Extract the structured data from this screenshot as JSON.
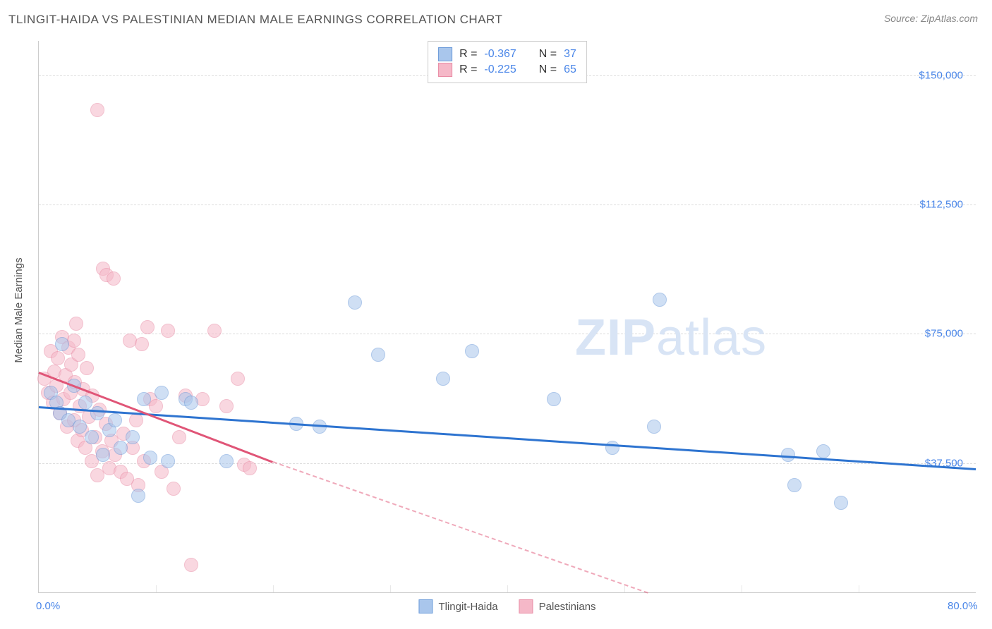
{
  "title": "TLINGIT-HAIDA VS PALESTINIAN MEDIAN MALE EARNINGS CORRELATION CHART",
  "source": "Source: ZipAtlas.com",
  "watermark_bold": "ZIP",
  "watermark_light": "atlas",
  "y_axis_label": "Median Male Earnings",
  "chart": {
    "type": "scatter",
    "background_color": "#ffffff",
    "grid_color": "#dddddd",
    "xlim": [
      0,
      80
    ],
    "ylim": [
      0,
      160000
    ],
    "x_ticks": [
      0,
      80
    ],
    "x_tick_labels": [
      "0.0%",
      "80.0%"
    ],
    "x_minor_ticks": [
      10,
      20,
      30,
      40,
      50,
      60,
      70
    ],
    "y_ticks": [
      37500,
      75000,
      112500,
      150000
    ],
    "y_tick_labels": [
      "$37,500",
      "$75,000",
      "$112,500",
      "$150,000"
    ],
    "point_radius": 9,
    "point_opacity": 0.55,
    "series": [
      {
        "name": "Tlingit-Haida",
        "fill_color": "#a9c6ec",
        "stroke_color": "#6c9bd9",
        "line_color": "#2e74d0",
        "R": "-0.367",
        "N": "37",
        "trend": {
          "x1": 0,
          "y1": 54000,
          "x2": 80,
          "y2": 36000
        },
        "points": [
          [
            1.0,
            58000
          ],
          [
            1.5,
            55000
          ],
          [
            1.8,
            52000
          ],
          [
            2.0,
            72000
          ],
          [
            2.5,
            50000
          ],
          [
            3.0,
            60000
          ],
          [
            3.5,
            48000
          ],
          [
            4.0,
            55000
          ],
          [
            4.5,
            45000
          ],
          [
            5.0,
            52000
          ],
          [
            5.5,
            40000
          ],
          [
            6.0,
            47000
          ],
          [
            6.5,
            50000
          ],
          [
            7.0,
            42000
          ],
          [
            8.0,
            45000
          ],
          [
            8.5,
            28000
          ],
          [
            9.0,
            56000
          ],
          [
            9.5,
            39000
          ],
          [
            10.5,
            58000
          ],
          [
            11.0,
            38000
          ],
          [
            12.5,
            56000
          ],
          [
            13.0,
            55000
          ],
          [
            16.0,
            38000
          ],
          [
            22.0,
            49000
          ],
          [
            24.0,
            48000
          ],
          [
            27.0,
            84000
          ],
          [
            29.0,
            69000
          ],
          [
            34.5,
            62000
          ],
          [
            37.0,
            70000
          ],
          [
            44.0,
            56000
          ],
          [
            49.0,
            42000
          ],
          [
            52.5,
            48000
          ],
          [
            64.0,
            40000
          ],
          [
            64.5,
            31000
          ],
          [
            67.0,
            41000
          ],
          [
            68.5,
            26000
          ],
          [
            53.0,
            85000
          ]
        ]
      },
      {
        "name": "Palestinians",
        "fill_color": "#f5b8c8",
        "stroke_color": "#e98ca5",
        "line_color": "#e05577",
        "R": "-0.225",
        "N": "65",
        "trend": {
          "x1": 0,
          "y1": 64000,
          "x2": 20,
          "y2": 38000
        },
        "trend_dash": {
          "x1": 20,
          "y1": 38000,
          "x2": 52,
          "y2": 0
        },
        "points": [
          [
            0.5,
            62000
          ],
          [
            0.8,
            58000
          ],
          [
            1.0,
            70000
          ],
          [
            1.2,
            55000
          ],
          [
            1.3,
            64000
          ],
          [
            1.5,
            60000
          ],
          [
            1.6,
            68000
          ],
          [
            1.8,
            52000
          ],
          [
            2.0,
            74000
          ],
          [
            2.1,
            56000
          ],
          [
            2.3,
            63000
          ],
          [
            2.4,
            48000
          ],
          [
            2.5,
            71000
          ],
          [
            2.7,
            58000
          ],
          [
            2.8,
            66000
          ],
          [
            3.0,
            50000
          ],
          [
            3.1,
            61000
          ],
          [
            3.3,
            44000
          ],
          [
            3.4,
            69000
          ],
          [
            3.5,
            54000
          ],
          [
            3.7,
            47000
          ],
          [
            3.8,
            59000
          ],
          [
            4.0,
            42000
          ],
          [
            4.1,
            65000
          ],
          [
            4.3,
            51000
          ],
          [
            4.5,
            38000
          ],
          [
            4.6,
            57000
          ],
          [
            4.8,
            45000
          ],
          [
            5.0,
            34000
          ],
          [
            5.2,
            53000
          ],
          [
            5.4,
            41000
          ],
          [
            5.5,
            94000
          ],
          [
            5.7,
            49000
          ],
          [
            5.8,
            92000
          ],
          [
            6.0,
            36000
          ],
          [
            5.0,
            140000
          ],
          [
            6.2,
            44000
          ],
          [
            6.4,
            91000
          ],
          [
            6.5,
            40000
          ],
          [
            7.0,
            35000
          ],
          [
            7.2,
            46000
          ],
          [
            7.5,
            33000
          ],
          [
            7.8,
            73000
          ],
          [
            8.0,
            42000
          ],
          [
            8.3,
            50000
          ],
          [
            8.5,
            31000
          ],
          [
            8.8,
            72000
          ],
          [
            9.0,
            38000
          ],
          [
            9.3,
            77000
          ],
          [
            9.5,
            56000
          ],
          [
            10.0,
            54000
          ],
          [
            10.5,
            35000
          ],
          [
            11.0,
            76000
          ],
          [
            11.5,
            30000
          ],
          [
            12.0,
            45000
          ],
          [
            12.5,
            57000
          ],
          [
            13.0,
            8000
          ],
          [
            14.0,
            56000
          ],
          [
            15.0,
            76000
          ],
          [
            16.0,
            54000
          ],
          [
            17.0,
            62000
          ],
          [
            17.5,
            37000
          ],
          [
            18.0,
            36000
          ],
          [
            3.0,
            73000
          ],
          [
            3.2,
            78000
          ]
        ]
      }
    ]
  },
  "legend_top": {
    "R_label": "R =",
    "N_label": "N ="
  },
  "legend_bottom": {
    "series1": "Tlingit-Haida",
    "series2": "Palestinians"
  }
}
